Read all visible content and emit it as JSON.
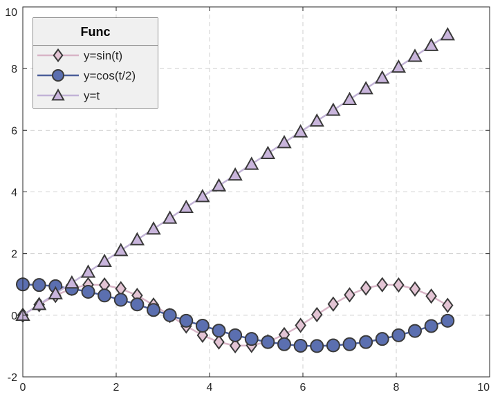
{
  "chart_data": {
    "type": "line",
    "title": "",
    "xlabel": "",
    "ylabel": "",
    "xlim": [
      0,
      10
    ],
    "ylim": [
      -2,
      10
    ],
    "xticks": [
      "0",
      "2",
      "4",
      "6",
      "8",
      "10"
    ],
    "yticks": [
      "-2",
      "0",
      "2",
      "4",
      "6",
      "8",
      "10"
    ],
    "grid": true,
    "legend": {
      "title": "Func",
      "placement": "top-left"
    },
    "series": [
      {
        "name": "y=sin(t)",
        "marker": "diamond",
        "line_color": "#d8b4c6",
        "marker_fill": "#e3c4d4",
        "x": [
          0,
          0.35,
          0.7,
          1.05,
          1.4,
          1.75,
          2.1,
          2.45,
          2.8,
          3.15,
          3.5,
          3.85,
          4.2,
          4.55,
          4.9,
          5.25,
          5.6,
          5.95,
          6.3,
          6.65,
          7.0,
          7.35,
          7.7,
          8.05,
          8.4,
          8.75,
          9.1
        ],
        "y": [
          0,
          0.34,
          0.64,
          0.87,
          0.99,
          0.98,
          0.86,
          0.64,
          0.33,
          -0.01,
          -0.35,
          -0.65,
          -0.87,
          -0.99,
          -0.98,
          -0.86,
          -0.63,
          -0.33,
          0.02,
          0.36,
          0.66,
          0.88,
          0.99,
          0.98,
          0.85,
          0.62,
          0.32
        ]
      },
      {
        "name": "y=cos(t/2)",
        "marker": "circle",
        "line_color": "#4b5e9a",
        "marker_fill": "#5b6fb0",
        "x": [
          0,
          0.35,
          0.7,
          1.05,
          1.4,
          1.75,
          2.1,
          2.45,
          2.8,
          3.15,
          3.5,
          3.85,
          4.2,
          4.55,
          4.9,
          5.25,
          5.6,
          5.95,
          6.3,
          6.65,
          7.0,
          7.35,
          7.7,
          8.05,
          8.4,
          8.75,
          9.1
        ],
        "y": [
          1,
          0.98,
          0.94,
          0.86,
          0.76,
          0.64,
          0.5,
          0.35,
          0.17,
          0.0,
          -0.18,
          -0.34,
          -0.5,
          -0.65,
          -0.77,
          -0.87,
          -0.94,
          -0.99,
          -1.0,
          -0.98,
          -0.94,
          -0.87,
          -0.77,
          -0.65,
          -0.51,
          -0.35,
          -0.18
        ]
      },
      {
        "name": "y=t",
        "marker": "triangle",
        "line_color": "#c2b3d6",
        "marker_fill": "#c9b5dc",
        "x": [
          0,
          0.35,
          0.7,
          1.05,
          1.4,
          1.75,
          2.1,
          2.45,
          2.8,
          3.15,
          3.5,
          3.85,
          4.2,
          4.55,
          4.9,
          5.25,
          5.6,
          5.95,
          6.3,
          6.65,
          7.0,
          7.35,
          7.7,
          8.05,
          8.4,
          8.75,
          9.1
        ],
        "y": [
          0,
          0.35,
          0.7,
          1.05,
          1.4,
          1.75,
          2.1,
          2.45,
          2.8,
          3.15,
          3.5,
          3.85,
          4.2,
          4.55,
          4.9,
          5.25,
          5.6,
          5.95,
          6.3,
          6.65,
          7.0,
          7.35,
          7.7,
          8.05,
          8.4,
          8.75,
          9.1
        ]
      }
    ]
  }
}
